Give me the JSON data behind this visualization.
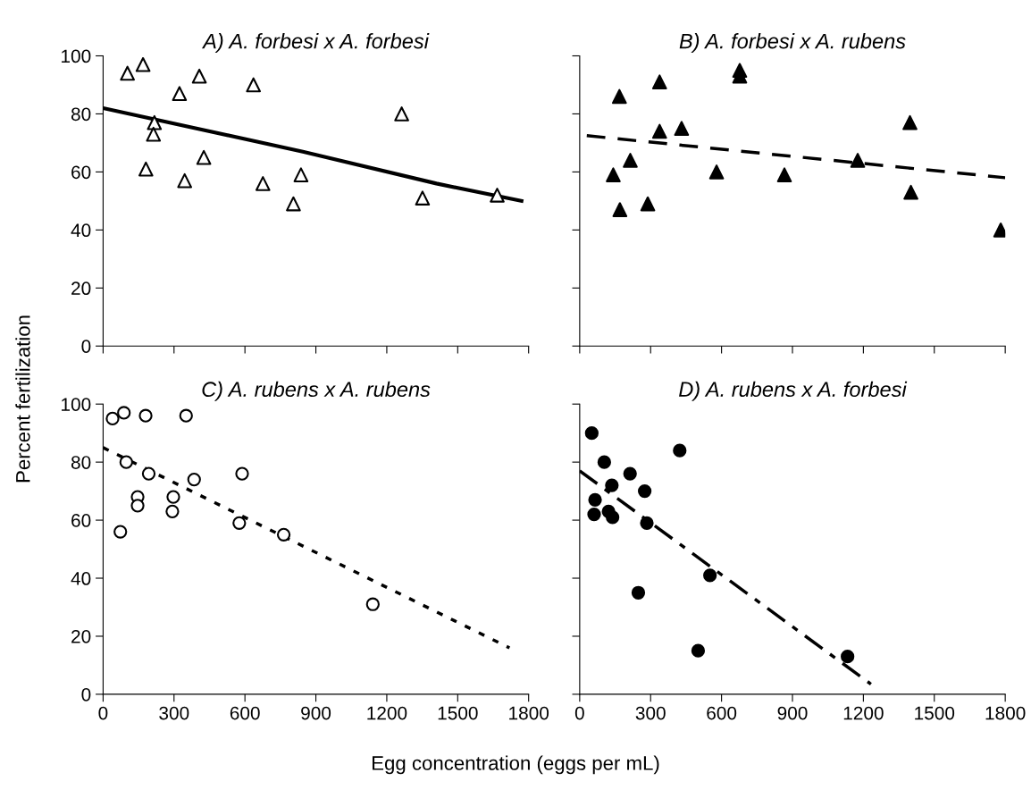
{
  "chart_data": [
    {
      "type": "scatter",
      "title": "A) A. forbesi x A. forbesi",
      "ylabel": "Percent fertilization",
      "xlim": [
        0,
        1800
      ],
      "ylim": [
        0,
        100
      ],
      "xticks": [
        0,
        300,
        600,
        900,
        1200,
        1500,
        1800
      ],
      "yticks": [
        0,
        20,
        40,
        60,
        80,
        100
      ],
      "tick_labels": "y",
      "grid": false,
      "legend": false,
      "series": [
        {
          "type": "scatter",
          "marker": "triangle",
          "color": "#ffffff",
          "x": [
            103,
            169,
            323,
            407,
            636,
            217,
            213,
            181,
            345,
            426,
            676,
            837,
            805,
            1263,
            1351,
            1667
          ],
          "values": [
            94,
            97,
            87,
            93,
            90,
            77,
            73,
            61,
            57,
            65,
            56,
            59,
            49,
            80,
            51,
            52
          ]
        },
        {
          "type": "line",
          "line_style": "solid",
          "color": "#000000",
          "x": [
            0,
            845,
            1410,
            1770
          ],
          "values": [
            82,
            67,
            56,
            50
          ]
        }
      ]
    },
    {
      "type": "scatter",
      "title": "B) A. forbesi x A. rubens",
      "xlim": [
        0,
        1800
      ],
      "ylim": [
        0,
        100
      ],
      "xticks": [
        0,
        300,
        600,
        900,
        1200,
        1500,
        1800
      ],
      "yticks": [
        0,
        20,
        40,
        60,
        80,
        100
      ],
      "tick_labels": false,
      "grid": false,
      "legend": false,
      "series": [
        {
          "type": "scatter",
          "marker": "triangle",
          "color": "#000000",
          "x": [
            168,
            338,
            677,
            677,
            338,
            431,
            214,
            142,
            170,
            288,
            579,
            866,
            1176,
            1397,
            1401,
            1781
          ],
          "values": [
            86,
            91,
            95,
            93,
            74,
            75,
            64,
            59,
            47,
            49,
            60,
            59,
            64,
            77,
            53,
            40
          ]
        },
        {
          "type": "line",
          "line_style": "dashed",
          "color": "#000000",
          "x": [
            30,
            1800
          ],
          "values": [
            72.5,
            58
          ]
        }
      ]
    },
    {
      "type": "scatter",
      "title": "C) A. rubens x A. rubens",
      "xlabel": "Egg concentration (eggs per mL)",
      "xlim": [
        0,
        1800
      ],
      "ylim": [
        0,
        100
      ],
      "xticks": [
        0,
        300,
        600,
        900,
        1200,
        1500,
        1800
      ],
      "yticks": [
        0,
        20,
        40,
        60,
        80,
        100
      ],
      "grid": false,
      "legend": false,
      "series": [
        {
          "type": "scatter",
          "marker": "circle",
          "color": "#ffffff",
          "x": [
            40,
            88,
            180,
            351,
            98,
            193,
            385,
            588,
            146,
            146,
            297,
            293,
            73,
            576,
            764,
            1141
          ],
          "values": [
            95,
            97,
            96,
            96,
            80,
            76,
            74,
            76,
            68,
            65,
            68,
            63,
            56,
            59,
            55,
            31
          ]
        },
        {
          "type": "line",
          "line_style": "dotted",
          "color": "#000000",
          "x": [
            0,
            1719
          ],
          "values": [
            85,
            16
          ]
        }
      ]
    },
    {
      "type": "scatter",
      "title": "D) A. rubens x A. forbesi",
      "xlim": [
        0,
        1800
      ],
      "ylim": [
        0,
        100
      ],
      "xticks": [
        0,
        300,
        600,
        900,
        1200,
        1500,
        1800
      ],
      "yticks": [
        0,
        20,
        40,
        60,
        80,
        100
      ],
      "tick_labels": "x",
      "grid": false,
      "legend": false,
      "series": [
        {
          "type": "scatter",
          "marker": "circle",
          "color": "#000000",
          "x": [
            51,
            104,
            423,
            213,
            136,
            275,
            65,
            61,
            122,
            139,
            284,
            551,
            248,
            501,
            1133
          ],
          "values": [
            90,
            80,
            84,
            76,
            72,
            70,
            67,
            62,
            63,
            61,
            59,
            41,
            35,
            15,
            13
          ]
        },
        {
          "type": "line",
          "line_style": "dashdot",
          "color": "#000000",
          "x": [
            0,
            1232
          ],
          "values": [
            77,
            3.5
          ]
        }
      ]
    }
  ]
}
